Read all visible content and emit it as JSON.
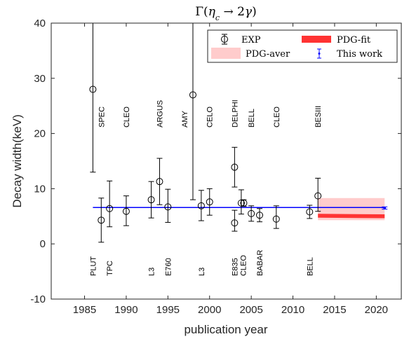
{
  "chart_data": {
    "type": "scatter",
    "title": "Γ(η_c → 2γ)",
    "xlabel": "publication year",
    "ylabel": "Decay width(keV)",
    "xlim": [
      1981,
      2023
    ],
    "ylim": [
      -10,
      40
    ],
    "xticks": [
      1985,
      1990,
      1995,
      2000,
      2005,
      2010,
      2015,
      2020
    ],
    "yticks": [
      -10,
      0,
      10,
      20,
      30,
      40
    ],
    "grid": false,
    "legend_position": "top-right",
    "legend": {
      "exp": "EXP",
      "pdg_fit": "PDG-fit",
      "pdg_aver": "PDG-aver",
      "this_work": "This work"
    },
    "series": [
      {
        "name": "EXP",
        "points": [
          {
            "x": 1986,
            "y": 28.0,
            "lo": 13.0,
            "hi": 40.0
          },
          {
            "x": 1987,
            "y": 4.3,
            "lo": 0.3,
            "hi": 8.3
          },
          {
            "x": 1988,
            "y": 6.4,
            "lo": 3.1,
            "hi": 11.4
          },
          {
            "x": 1990,
            "y": 5.9,
            "lo": 3.3,
            "hi": 8.7
          },
          {
            "x": 1993,
            "y": 8.0,
            "lo": 4.7,
            "hi": 11.3
          },
          {
            "x": 1994,
            "y": 11.3,
            "lo": 7.1,
            "hi": 15.5
          },
          {
            "x": 1995,
            "y": 6.7,
            "lo": 3.9,
            "hi": 9.9
          },
          {
            "x": 1998,
            "y": 27.0,
            "lo": 8.0,
            "hi": 40.0
          },
          {
            "x": 1999,
            "y": 6.9,
            "lo": 4.2,
            "hi": 9.7
          },
          {
            "x": 2000,
            "y": 7.6,
            "lo": 5.2,
            "hi": 10.0
          },
          {
            "x": 2003,
            "y": 13.9,
            "lo": 10.3,
            "hi": 17.5
          },
          {
            "x": 2003,
            "y": 3.8,
            "lo": 2.3,
            "hi": 6.1
          },
          {
            "x": 2003.8,
            "y": 7.4,
            "lo": 5.4,
            "hi": 9.8
          },
          {
            "x": 2004.1,
            "y": 7.4,
            "lo": 6.8,
            "hi": 8.0
          },
          {
            "x": 2005,
            "y": 5.5,
            "lo": 4.1,
            "hi": 6.9
          },
          {
            "x": 2006,
            "y": 5.2,
            "lo": 4.0,
            "hi": 6.4
          },
          {
            "x": 2008,
            "y": 4.5,
            "lo": 2.8,
            "hi": 6.9
          },
          {
            "x": 2012,
            "y": 5.8,
            "lo": 4.6,
            "hi": 7.0
          },
          {
            "x": 2013,
            "y": 8.7,
            "lo": 5.9,
            "hi": 11.9
          }
        ]
      },
      {
        "name": "This work",
        "x": 2021,
        "y": 6.5,
        "lo": 6.3,
        "hi": 6.7,
        "line_y": 6.6,
        "line_x": [
          1986,
          2021
        ]
      },
      {
        "name": "PDG-aver",
        "x": [
          2013,
          2021
        ],
        "y_lo": 4.3,
        "y_hi": 8.3
      },
      {
        "name": "PDG-fit",
        "x": [
          2013,
          2021
        ],
        "y_start": 5.1,
        "y_end": 5.0,
        "half_width": 0.35
      }
    ],
    "experiment_labels_top": [
      {
        "x": 1987,
        "text": "SPEC"
      },
      {
        "x": 1990,
        "text": "CLEO"
      },
      {
        "x": 1994,
        "text": "ARGUS"
      },
      {
        "x": 1997,
        "text": "AMY"
      },
      {
        "x": 2000,
        "text": "CELO"
      },
      {
        "x": 2003,
        "text": "DELPHI"
      },
      {
        "x": 2005,
        "text": "BELL"
      },
      {
        "x": 2008,
        "text": "CLEO"
      },
      {
        "x": 2013,
        "text": "BESIII"
      }
    ],
    "experiment_labels_bottom": [
      {
        "x": 1986,
        "text": "PLUT"
      },
      {
        "x": 1988,
        "text": "TPC"
      },
      {
        "x": 1993,
        "text": "L3"
      },
      {
        "x": 1995,
        "text": "E760"
      },
      {
        "x": 1999,
        "text": "L3"
      },
      {
        "x": 2003,
        "text": "E835"
      },
      {
        "x": 2004,
        "text": "CLEO"
      },
      {
        "x": 2006,
        "text": "BABAR"
      },
      {
        "x": 2012,
        "text": "BELL"
      }
    ],
    "colors": {
      "exp": "#000000",
      "this_work": "#0000ff",
      "pdg_fit": "#ff3333",
      "pdg_aver": "#ffcccc",
      "axis": "#262626"
    }
  }
}
